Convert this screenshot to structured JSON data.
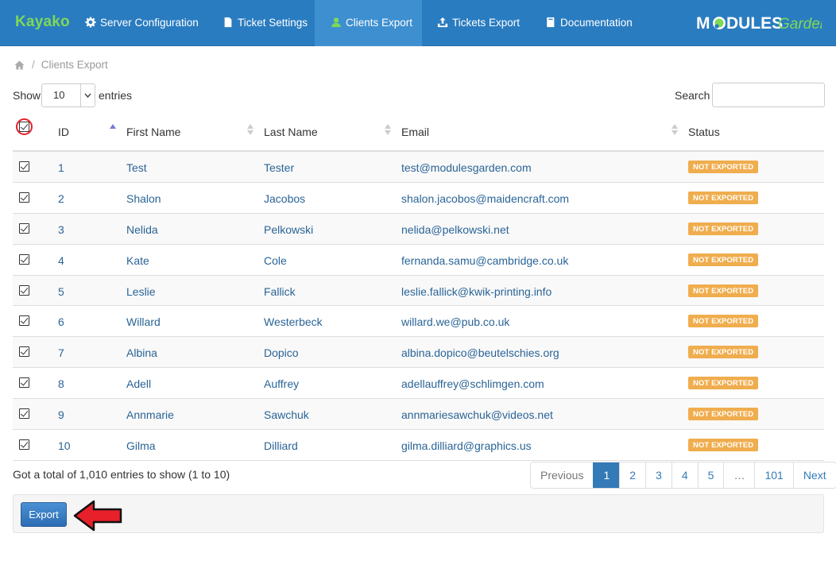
{
  "nav": {
    "brand": "Kayako",
    "items": [
      {
        "label": "Server Configuration",
        "icon": "gear-icon"
      },
      {
        "label": "Ticket Settings",
        "icon": "file-icon"
      },
      {
        "label": "Clients Export",
        "icon": "user-icon"
      },
      {
        "label": "Tickets Export",
        "icon": "export-icon"
      },
      {
        "label": "Documentation",
        "icon": "book-icon"
      }
    ],
    "active": "Clients Export",
    "logo_text_1": "M",
    "logo_text_2": "DULES",
    "logo_text_3": "Garden"
  },
  "breadcrumb": {
    "home_icon": "home-icon",
    "current": "Clients Export"
  },
  "length": {
    "show_label": "Show",
    "value": "10",
    "after_label": "entries"
  },
  "search": {
    "label": "Search",
    "value": ""
  },
  "table": {
    "headers": {
      "id": "ID",
      "first": "First Name",
      "last": "Last Name",
      "email": "Email",
      "status": "Status"
    },
    "rows": [
      {
        "id": "1",
        "first": "Test",
        "last": "Tester",
        "email": "test@modulesgarden.com",
        "status": "NOT EXPORTED"
      },
      {
        "id": "2",
        "first": "Shalon",
        "last": "Jacobos",
        "email": "shalon.jacobos@maidencraft.com",
        "status": "NOT EXPORTED"
      },
      {
        "id": "3",
        "first": "Nelida",
        "last": "Pelkowski",
        "email": "nelida@pelkowski.net",
        "status": "NOT EXPORTED"
      },
      {
        "id": "4",
        "first": "Kate",
        "last": "Cole",
        "email": "fernanda.samu@cambridge.co.uk",
        "status": "NOT EXPORTED"
      },
      {
        "id": "5",
        "first": "Leslie",
        "last": "Fallick",
        "email": "leslie.fallick@kwik-printing.info",
        "status": "NOT EXPORTED"
      },
      {
        "id": "6",
        "first": "Willard",
        "last": "Westerbeck",
        "email": "willard.we@pub.co.uk",
        "status": "NOT EXPORTED"
      },
      {
        "id": "7",
        "first": "Albina",
        "last": "Dopico",
        "email": "albina.dopico@beutelschies.org",
        "status": "NOT EXPORTED"
      },
      {
        "id": "8",
        "first": "Adell",
        "last": "Auffrey",
        "email": "adellauffrey@schlimgen.com",
        "status": "NOT EXPORTED"
      },
      {
        "id": "9",
        "first": "Annmarie",
        "last": "Sawchuk",
        "email": "annmariesawchuk@videos.net",
        "status": "NOT EXPORTED"
      },
      {
        "id": "10",
        "first": "Gilma",
        "last": "Dilliard",
        "email": "gilma.dilliard@graphics.us",
        "status": "NOT EXPORTED"
      }
    ]
  },
  "info": "Got a total of 1,010 entries to show (1 to 10)",
  "pagination": [
    "Previous",
    "1",
    "2",
    "3",
    "4",
    "5",
    "…",
    "101",
    "Next"
  ],
  "pagination_active": "1",
  "export_label": "Export",
  "colors": {
    "nav": "#2a7cc0",
    "brand": "#7ed957",
    "badge": "#f0ad4e",
    "link": "#2a6496",
    "primary": "#337ab7"
  }
}
